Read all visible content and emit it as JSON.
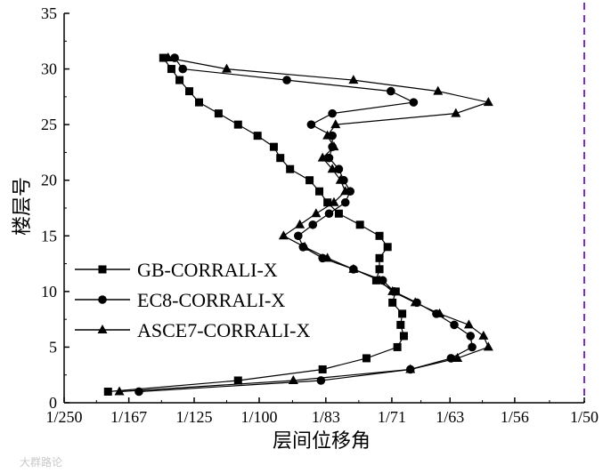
{
  "chart_data": {
    "type": "line",
    "xlabel": "层间位移角",
    "ylabel": "楼层号",
    "x_axis": {
      "ticks": [
        {
          "label": "1/250",
          "value": 0.004
        },
        {
          "label": "1/167",
          "value": 0.00599
        },
        {
          "label": "1/125",
          "value": 0.008
        },
        {
          "label": "1/100",
          "value": 0.01
        },
        {
          "label": "1/83",
          "value": 0.01205
        },
        {
          "label": "1/71",
          "value": 0.01408
        },
        {
          "label": "1/63",
          "value": 0.01587
        },
        {
          "label": "1/56",
          "value": 0.01786
        },
        {
          "label": "1/50",
          "value": 0.02
        }
      ],
      "range": [
        0.004,
        0.02
      ]
    },
    "y_axis": {
      "ticks": [
        0,
        5,
        10,
        15,
        20,
        25,
        30,
        35
      ],
      "range": [
        0,
        35
      ]
    },
    "reference_line": {
      "x": 0.02,
      "color": "#7b2fbf",
      "style": "dashed"
    },
    "legend_position": "center-left",
    "series": [
      {
        "name": "GB-CORRALI-X",
        "marker": "square",
        "points": [
          {
            "x": 0.00535,
            "y": 1
          },
          {
            "x": 0.00935,
            "y": 2
          },
          {
            "x": 0.01195,
            "y": 3
          },
          {
            "x": 0.0133,
            "y": 4
          },
          {
            "x": 0.01425,
            "y": 5
          },
          {
            "x": 0.01445,
            "y": 6
          },
          {
            "x": 0.01435,
            "y": 7
          },
          {
            "x": 0.0144,
            "y": 8
          },
          {
            "x": 0.0141,
            "y": 9
          },
          {
            "x": 0.0142,
            "y": 10
          },
          {
            "x": 0.0136,
            "y": 11
          },
          {
            "x": 0.0137,
            "y": 12
          },
          {
            "x": 0.0137,
            "y": 13
          },
          {
            "x": 0.01395,
            "y": 14
          },
          {
            "x": 0.0137,
            "y": 15
          },
          {
            "x": 0.0131,
            "y": 16
          },
          {
            "x": 0.01245,
            "y": 17
          },
          {
            "x": 0.0121,
            "y": 18
          },
          {
            "x": 0.01185,
            "y": 19
          },
          {
            "x": 0.01155,
            "y": 20
          },
          {
            "x": 0.01095,
            "y": 21
          },
          {
            "x": 0.01065,
            "y": 22
          },
          {
            "x": 0.01045,
            "y": 23
          },
          {
            "x": 0.00995,
            "y": 24
          },
          {
            "x": 0.00935,
            "y": 25
          },
          {
            "x": 0.00875,
            "y": 26
          },
          {
            "x": 0.00815,
            "y": 27
          },
          {
            "x": 0.00785,
            "y": 28
          },
          {
            "x": 0.00755,
            "y": 29
          },
          {
            "x": 0.0073,
            "y": 30
          },
          {
            "x": 0.00705,
            "y": 31
          }
        ]
      },
      {
        "name": "EC8-CORRALI-X",
        "marker": "circle",
        "points": [
          {
            "x": 0.0063,
            "y": 1
          },
          {
            "x": 0.0119,
            "y": 2
          },
          {
            "x": 0.01465,
            "y": 3
          },
          {
            "x": 0.0159,
            "y": 4
          },
          {
            "x": 0.01655,
            "y": 5
          },
          {
            "x": 0.0165,
            "y": 6
          },
          {
            "x": 0.016,
            "y": 7
          },
          {
            "x": 0.01545,
            "y": 8
          },
          {
            "x": 0.01485,
            "y": 9
          },
          {
            "x": 0.01415,
            "y": 10
          },
          {
            "x": 0.0138,
            "y": 11
          },
          {
            "x": 0.0129,
            "y": 12
          },
          {
            "x": 0.01195,
            "y": 13
          },
          {
            "x": 0.01135,
            "y": 14
          },
          {
            "x": 0.0112,
            "y": 15
          },
          {
            "x": 0.01165,
            "y": 16
          },
          {
            "x": 0.01215,
            "y": 17
          },
          {
            "x": 0.01265,
            "y": 18
          },
          {
            "x": 0.0128,
            "y": 19
          },
          {
            "x": 0.0126,
            "y": 20
          },
          {
            "x": 0.01245,
            "y": 21
          },
          {
            "x": 0.01215,
            "y": 22
          },
          {
            "x": 0.01225,
            "y": 23
          },
          {
            "x": 0.01225,
            "y": 24
          },
          {
            "x": 0.0116,
            "y": 25
          },
          {
            "x": 0.01225,
            "y": 26
          },
          {
            "x": 0.01475,
            "y": 27
          },
          {
            "x": 0.01405,
            "y": 28
          },
          {
            "x": 0.01085,
            "y": 29
          },
          {
            "x": 0.00765,
            "y": 30
          },
          {
            "x": 0.0074,
            "y": 31
          }
        ]
      },
      {
        "name": "ASCE7-CORRALI-X",
        "marker": "triangle",
        "points": [
          {
            "x": 0.0057,
            "y": 1
          },
          {
            "x": 0.01105,
            "y": 2
          },
          {
            "x": 0.01465,
            "y": 3
          },
          {
            "x": 0.0161,
            "y": 4
          },
          {
            "x": 0.01705,
            "y": 5
          },
          {
            "x": 0.0169,
            "y": 6
          },
          {
            "x": 0.01645,
            "y": 7
          },
          {
            "x": 0.01555,
            "y": 8
          },
          {
            "x": 0.0148,
            "y": 9
          },
          {
            "x": 0.0141,
            "y": 10
          },
          {
            "x": 0.0137,
            "y": 11
          },
          {
            "x": 0.0129,
            "y": 12
          },
          {
            "x": 0.0121,
            "y": 13
          },
          {
            "x": 0.0114,
            "y": 14
          },
          {
            "x": 0.01075,
            "y": 15
          },
          {
            "x": 0.01125,
            "y": 16
          },
          {
            "x": 0.01175,
            "y": 17
          },
          {
            "x": 0.0123,
            "y": 18
          },
          {
            "x": 0.01265,
            "y": 19
          },
          {
            "x": 0.0125,
            "y": 20
          },
          {
            "x": 0.01225,
            "y": 21
          },
          {
            "x": 0.01195,
            "y": 22
          },
          {
            "x": 0.0123,
            "y": 23
          },
          {
            "x": 0.0121,
            "y": 24
          },
          {
            "x": 0.01235,
            "y": 25
          },
          {
            "x": 0.01605,
            "y": 26
          },
          {
            "x": 0.01705,
            "y": 27
          },
          {
            "x": 0.0155,
            "y": 28
          },
          {
            "x": 0.0129,
            "y": 29
          },
          {
            "x": 0.009,
            "y": 30
          },
          {
            "x": 0.0072,
            "y": 31
          }
        ]
      }
    ]
  },
  "watermark": "大群路论"
}
